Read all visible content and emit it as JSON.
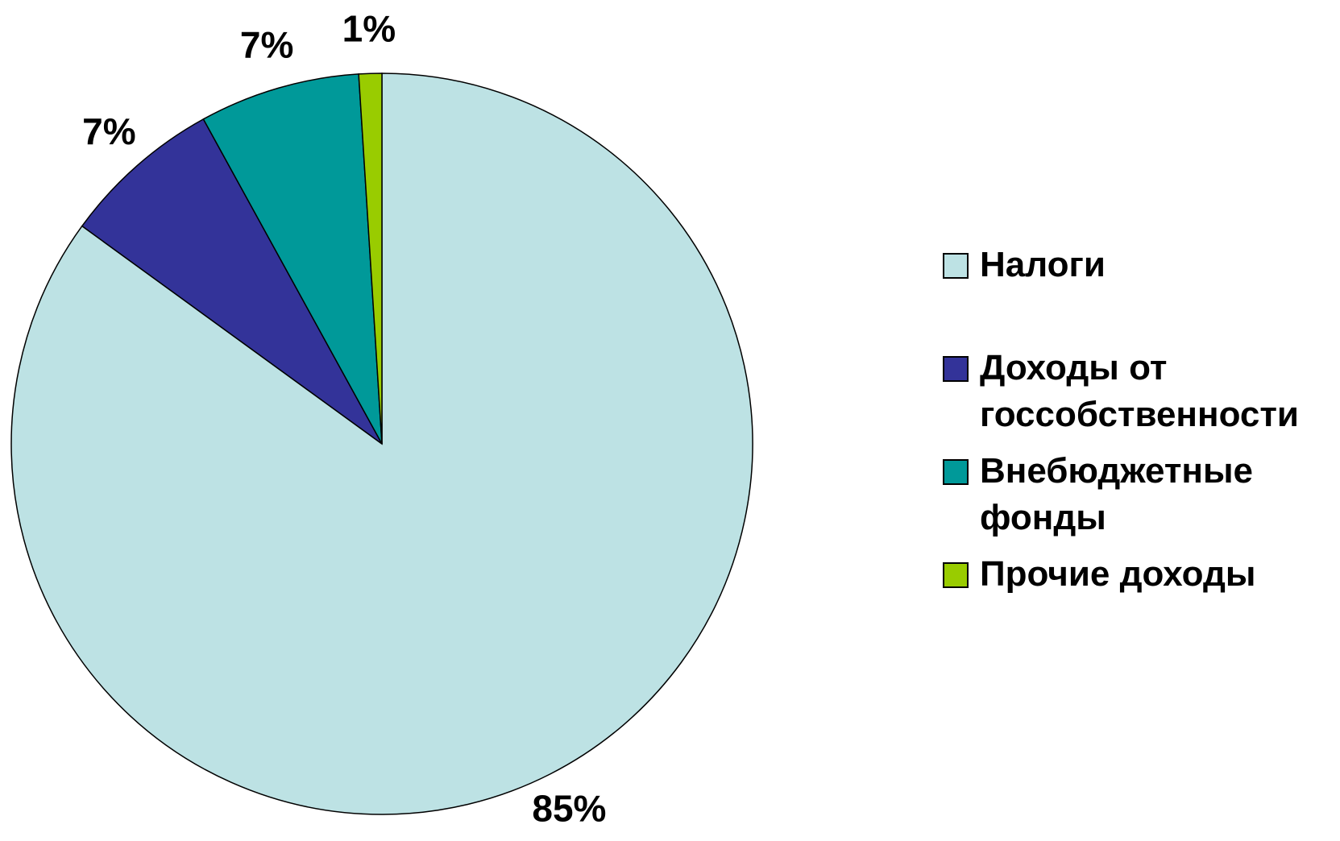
{
  "chart_data": {
    "type": "pie",
    "categories": [
      "Налоги",
      "Доходы от госсобственности",
      "Внебюджетные фонды",
      "Прочие доходы"
    ],
    "values": [
      85,
      7,
      7,
      1
    ],
    "value_labels": [
      "85%",
      "7%",
      "7%",
      "1%"
    ],
    "colors": [
      "#bde2e4",
      "#333399",
      "#009999",
      "#99cc00"
    ],
    "legend": "right"
  }
}
